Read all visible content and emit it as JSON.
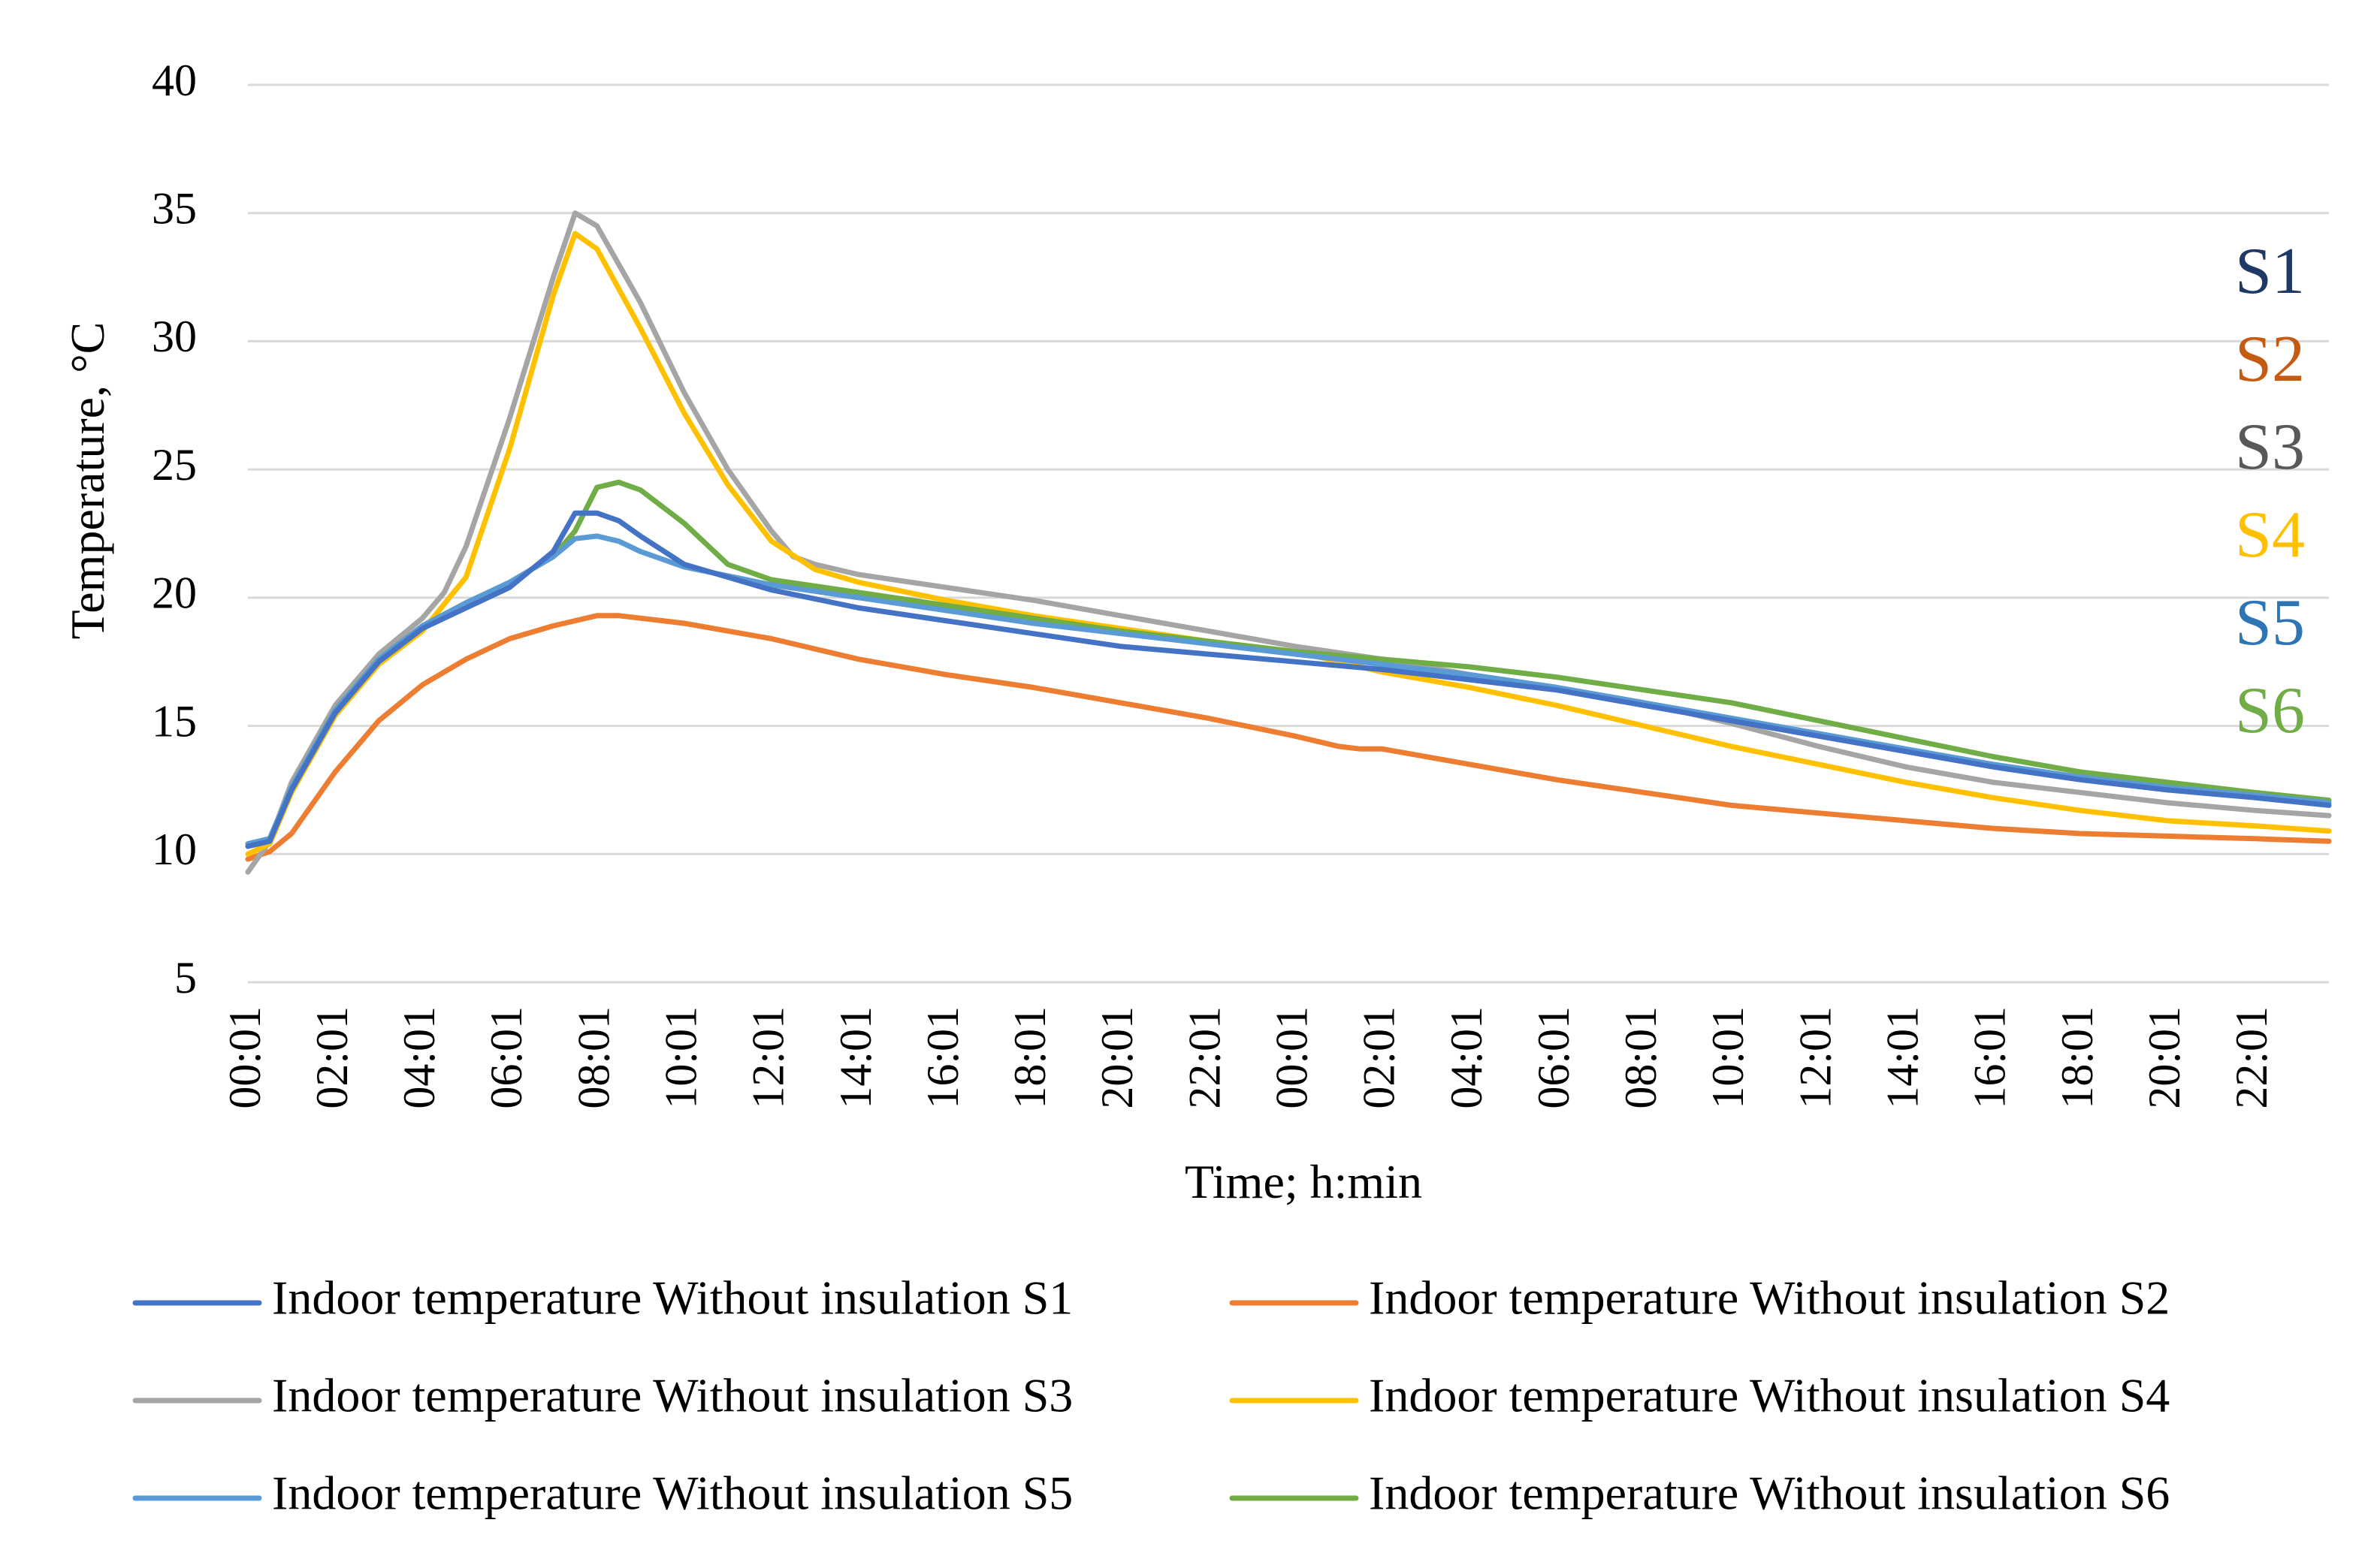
{
  "chart_data": {
    "type": "line",
    "title": "",
    "xlabel": "Time; h:min",
    "ylabel": "Temperature, °C",
    "ylim": [
      5,
      40
    ],
    "yticks": [
      5,
      10,
      15,
      20,
      25,
      30,
      35,
      40
    ],
    "x_range_hours": [
      0,
      47.7
    ],
    "x_tick_labels": [
      "00:01",
      "02:01",
      "04:01",
      "06:01",
      "08:01",
      "10:01",
      "12:01",
      "14:01",
      "16:01",
      "18:01",
      "20:01",
      "22:01",
      "00:01",
      "02:01",
      "04:01",
      "06:01",
      "08:01",
      "10:01",
      "12:01",
      "14:01",
      "16:01",
      "18:01",
      "20:01",
      "22:01"
    ],
    "x_tick_hours": [
      0,
      2,
      4,
      6,
      8,
      10,
      12,
      14,
      16,
      18,
      20,
      22,
      24,
      26,
      28,
      30,
      32,
      34,
      36,
      38,
      40,
      42,
      44,
      46
    ],
    "grid": "horizontal",
    "legend_position": "bottom",
    "series": [
      {
        "name": "Indoor temperature Without insulation S1",
        "short": "S1",
        "color": "#4472C4",
        "label_color": "#203864",
        "x": [
          0,
          0.5,
          1,
          2,
          3,
          4,
          5,
          6,
          7,
          7.5,
          8,
          8.5,
          9,
          10,
          12,
          14,
          16,
          18,
          20,
          22,
          24,
          26,
          28,
          30,
          32,
          34,
          36,
          38,
          40,
          42,
          44,
          46,
          47.7
        ],
        "y": [
          10.3,
          10.5,
          12.5,
          15.5,
          17.5,
          18.8,
          19.6,
          20.4,
          21.8,
          23.3,
          23.3,
          23.0,
          22.4,
          21.3,
          20.3,
          19.6,
          19.1,
          18.6,
          18.1,
          17.8,
          17.5,
          17.2,
          16.8,
          16.4,
          15.8,
          15.2,
          14.6,
          14.0,
          13.4,
          12.9,
          12.5,
          12.2,
          11.9
        ]
      },
      {
        "name": "Indoor temperature Without insulation S2",
        "short": "S2",
        "color": "#ED7D31",
        "label_color": "#C55A11",
        "x": [
          0,
          0.5,
          1,
          2,
          3,
          4,
          5,
          6,
          7,
          8,
          8.5,
          9,
          10,
          12,
          14,
          16,
          18,
          20,
          22,
          24,
          25,
          25.5,
          26,
          28,
          30,
          32,
          34,
          36,
          38,
          40,
          42,
          44,
          46,
          47.7
        ],
        "y": [
          9.8,
          10.1,
          10.8,
          13.2,
          15.2,
          16.6,
          17.6,
          18.4,
          18.9,
          19.3,
          19.3,
          19.2,
          19.0,
          18.4,
          17.6,
          17.0,
          16.5,
          15.9,
          15.3,
          14.6,
          14.2,
          14.1,
          14.1,
          13.5,
          12.9,
          12.4,
          11.9,
          11.6,
          11.3,
          11.0,
          10.8,
          10.7,
          10.6,
          10.5
        ]
      },
      {
        "name": "Indoor temperature Without insulation S3",
        "short": "S3",
        "color": "#A5A5A5",
        "label_color": "#595959",
        "x": [
          0,
          0.5,
          1,
          2,
          3,
          4,
          4.5,
          5,
          6,
          7,
          7.5,
          8,
          9,
          10,
          11,
          12,
          12.5,
          13,
          14,
          16,
          18,
          20,
          22,
          24,
          26,
          28,
          30,
          32,
          34,
          36,
          38,
          40,
          42,
          44,
          46,
          47.7
        ],
        "y": [
          9.3,
          10.5,
          12.8,
          15.8,
          17.8,
          19.2,
          20.2,
          22,
          27,
          32.5,
          35.0,
          34.5,
          31.5,
          28.0,
          25.0,
          22.6,
          21.6,
          21.3,
          20.9,
          20.4,
          19.9,
          19.3,
          18.7,
          18.1,
          17.6,
          17.0,
          16.5,
          15.9,
          15.1,
          14.2,
          13.4,
          12.8,
          12.4,
          12.0,
          11.7,
          11.5
        ]
      },
      {
        "name": "Indoor temperature Without insulation S4",
        "short": "S4",
        "color": "#FFC000",
        "label_color": "#FFC000",
        "x": [
          0,
          0.5,
          1,
          2,
          3,
          4,
          5,
          6,
          7,
          7.5,
          8,
          9,
          10,
          11,
          12,
          13,
          14,
          16,
          18,
          20,
          22,
          24,
          26,
          28,
          30,
          32,
          34,
          36,
          38,
          40,
          42,
          44,
          46,
          47.7
        ],
        "y": [
          10.0,
          10.4,
          12.4,
          15.4,
          17.4,
          18.7,
          20.8,
          25.8,
          31.8,
          34.2,
          33.6,
          30.5,
          27.2,
          24.4,
          22.2,
          21.1,
          20.6,
          19.9,
          19.3,
          18.8,
          18.3,
          17.9,
          17.1,
          16.5,
          15.8,
          15.0,
          14.2,
          13.5,
          12.8,
          12.2,
          11.7,
          11.3,
          11.1,
          10.9
        ]
      },
      {
        "name": "Indoor temperature Without insulation S5",
        "short": "S5",
        "color": "#5B9BD5",
        "label_color": "#2E75B6",
        "x": [
          0,
          0.5,
          1,
          2,
          3,
          4,
          5,
          6,
          7,
          7.5,
          8,
          8.5,
          9,
          10,
          12,
          14,
          16,
          18,
          20,
          22,
          24,
          26,
          28,
          30,
          32,
          34,
          36,
          38,
          40,
          42,
          44,
          46,
          47.7
        ],
        "y": [
          10.4,
          10.6,
          12.6,
          15.6,
          17.6,
          18.9,
          19.8,
          20.6,
          21.6,
          22.3,
          22.4,
          22.2,
          21.8,
          21.2,
          20.5,
          20.0,
          19.5,
          19.0,
          18.6,
          18.2,
          17.8,
          17.4,
          17.0,
          16.5,
          15.9,
          15.3,
          14.7,
          14.1,
          13.5,
          13.0,
          12.6,
          12.3,
          12.0
        ]
      },
      {
        "name": "Indoor temperature Without insulation S6",
        "short": "S6",
        "color": "#70AD47",
        "label_color": "#70AD47",
        "x": [
          0,
          0.5,
          1,
          2,
          3,
          4,
          5,
          6,
          7,
          7.5,
          8,
          8.5,
          9,
          10,
          11,
          12,
          14,
          16,
          18,
          20,
          22,
          24,
          26,
          28,
          30,
          32,
          34,
          36,
          38,
          40,
          42,
          44,
          46,
          47.7
        ],
        "y": [
          10.4,
          10.6,
          12.6,
          15.6,
          17.6,
          18.9,
          19.8,
          20.6,
          21.6,
          22.6,
          24.3,
          24.5,
          24.2,
          22.9,
          21.3,
          20.7,
          20.2,
          19.7,
          19.2,
          18.7,
          18.3,
          17.9,
          17.6,
          17.3,
          16.9,
          16.4,
          15.9,
          15.2,
          14.5,
          13.8,
          13.2,
          12.8,
          12.4,
          12.1
        ]
      }
    ]
  }
}
